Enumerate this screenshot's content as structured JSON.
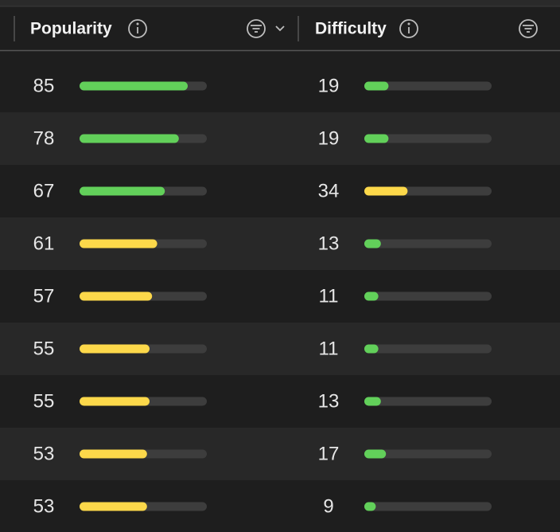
{
  "table": {
    "bar_range": [
      0,
      100
    ],
    "columns": [
      {
        "header": "Popularity",
        "values": [
          85,
          78,
          67,
          61,
          57,
          55,
          55,
          53,
          53
        ],
        "colors": [
          "#62d05a",
          "#62d05a",
          "#62d05a",
          "#fcd84a",
          "#fcd84a",
          "#fcd84a",
          "#fcd84a",
          "#fcd84a",
          "#fcd84a"
        ]
      },
      {
        "header": "Difficulty",
        "values": [
          19,
          19,
          34,
          13,
          11,
          11,
          13,
          17,
          9
        ],
        "colors": [
          "#62d05a",
          "#62d05a",
          "#fcd84a",
          "#62d05a",
          "#62d05a",
          "#62d05a",
          "#62d05a",
          "#62d05a",
          "#62d05a"
        ]
      }
    ]
  }
}
